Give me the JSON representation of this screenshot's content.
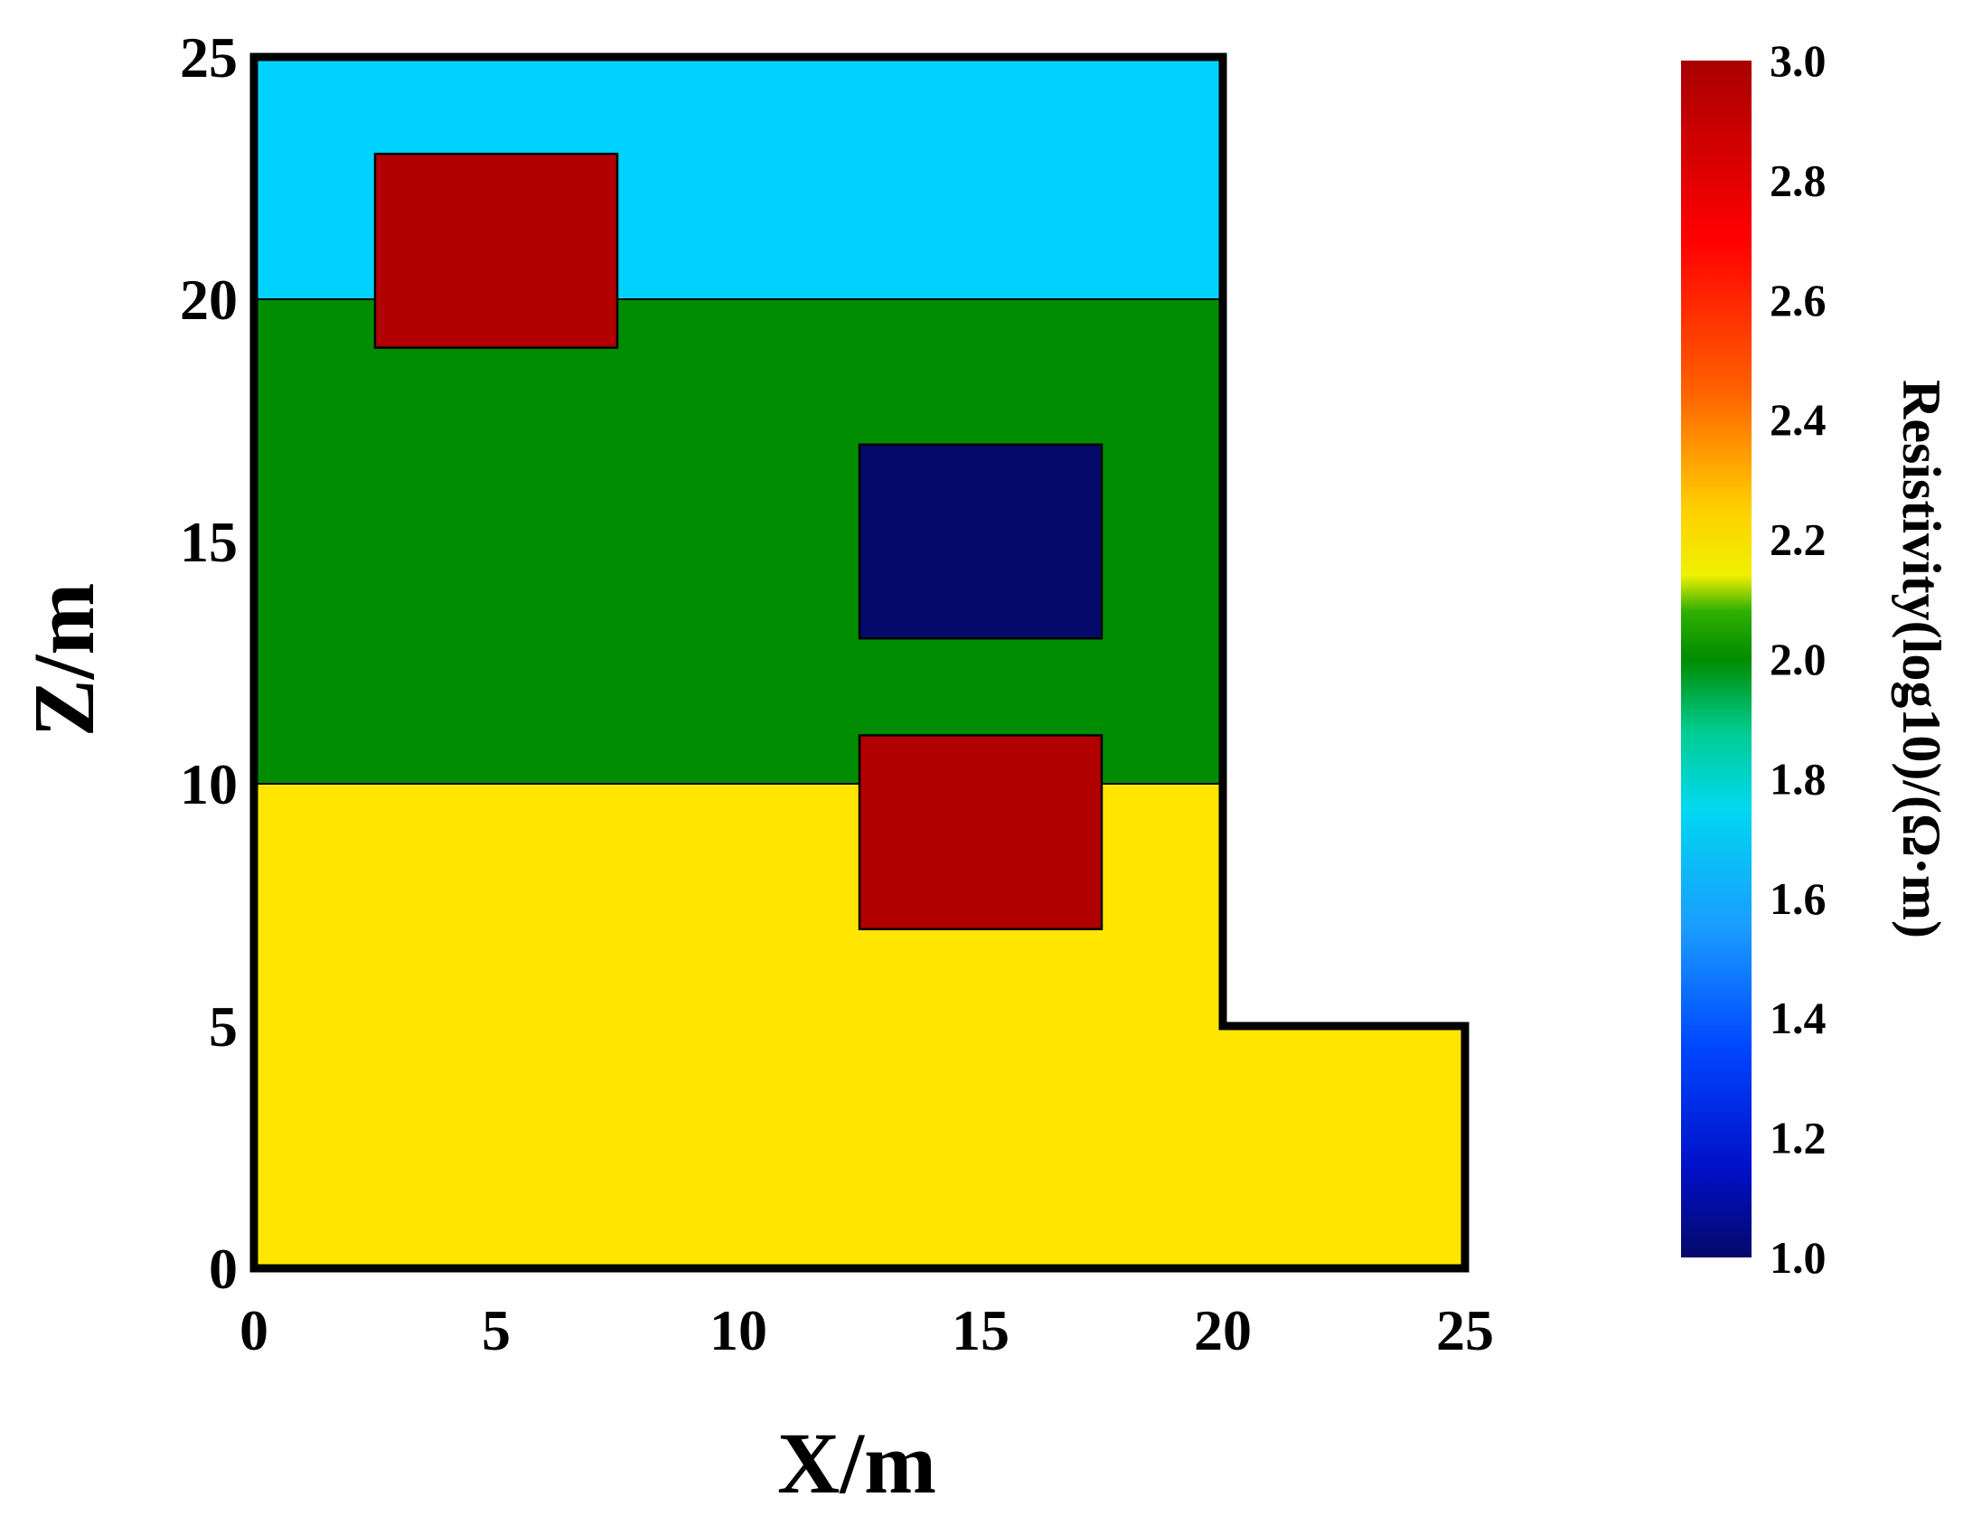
{
  "chart_data": {
    "type": "heatmap",
    "xlabel": "X/m",
    "ylabel": "Z/m",
    "xlim": [
      0,
      25
    ],
    "ylim": [
      0,
      25
    ],
    "x_ticks": [
      "0",
      "5",
      "10",
      "15",
      "20",
      "25"
    ],
    "y_ticks": [
      "0",
      "5",
      "10",
      "15",
      "20",
      "25"
    ],
    "model_outline": [
      [
        0,
        0
      ],
      [
        25,
        0
      ],
      [
        25,
        5
      ],
      [
        20,
        5
      ],
      [
        20,
        25
      ],
      [
        0,
        25
      ]
    ],
    "layers": [
      {
        "x0": 0,
        "x1": 20,
        "z0": 20,
        "z1": 25,
        "value": 1.75,
        "color": "#00d2ff"
      },
      {
        "x0": 0,
        "x1": 20,
        "z0": 10,
        "z1": 20,
        "value": 2.0,
        "color": "#008c00"
      },
      {
        "x0": 0,
        "x1": 20,
        "z0": 5,
        "z1": 10,
        "value": 2.2,
        "color": "#ffe600"
      },
      {
        "x0": 0,
        "x1": 25,
        "z0": 0,
        "z1": 5,
        "value": 2.2,
        "color": "#ffe600"
      }
    ],
    "anomalies": [
      {
        "x0": 2.5,
        "x1": 7.5,
        "z0": 19,
        "z1": 23,
        "value": 3.0,
        "color": "#b00000"
      },
      {
        "x0": 12.5,
        "x1": 17.5,
        "z0": 13,
        "z1": 17,
        "value": 1.0,
        "color": "#050a6a"
      },
      {
        "x0": 12.5,
        "x1": 17.5,
        "z0": 7,
        "z1": 11,
        "value": 3.0,
        "color": "#b00000"
      }
    ],
    "colorbar": {
      "label": "Resistivity(log10)/(Ω·m)",
      "range": [
        1.0,
        3.0
      ],
      "ticks": [
        "1.0",
        "1.2",
        "1.4",
        "1.6",
        "1.8",
        "2.0",
        "2.2",
        "2.4",
        "2.6",
        "2.8",
        "3.0"
      ],
      "stops": [
        {
          "value": 1.0,
          "color": "#05096a"
        },
        {
          "value": 1.15,
          "color": "#0010c8"
        },
        {
          "value": 1.35,
          "color": "#0046ff"
        },
        {
          "value": 1.55,
          "color": "#1a9cff"
        },
        {
          "value": 1.75,
          "color": "#00d8f0"
        },
        {
          "value": 1.88,
          "color": "#00cc90"
        },
        {
          "value": 2.0,
          "color": "#008c00"
        },
        {
          "value": 2.08,
          "color": "#30b000"
        },
        {
          "value": 2.14,
          "color": "#f0f000"
        },
        {
          "value": 2.25,
          "color": "#ffd000"
        },
        {
          "value": 2.45,
          "color": "#ff6000"
        },
        {
          "value": 2.7,
          "color": "#ff0000"
        },
        {
          "value": 3.0,
          "color": "#a80000"
        }
      ]
    }
  }
}
